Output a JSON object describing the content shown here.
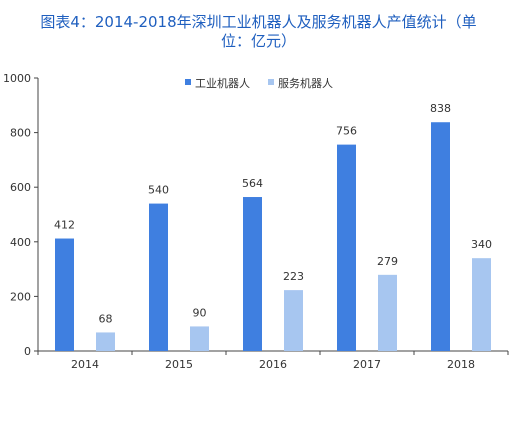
{
  "title_lines": [
    "图表4：2014-2018年深圳工业机器人及服务机器人产值统计（单",
    "位：亿元）"
  ],
  "chart_data": {
    "type": "bar",
    "title": "图表4：2014-2018年深圳工业机器人及服务机器人产值统计（单位：亿元）",
    "categories": [
      "2014",
      "2015",
      "2016",
      "2017",
      "2018"
    ],
    "series": [
      {
        "name": "工业机器人",
        "values": [
          412,
          540,
          564,
          756,
          838
        ],
        "color": "#3f7fe0"
      },
      {
        "name": "服务机器人",
        "values": [
          68,
          90,
          223,
          279,
          340
        ],
        "color": "#a7c6f0"
      }
    ],
    "ylim": [
      0,
      1000
    ],
    "yticks": [
      0,
      200,
      400,
      600,
      800,
      1000
    ],
    "xlabel": "",
    "ylabel": "",
    "grid": false,
    "legend_position": "top-center",
    "data_labels": true
  }
}
